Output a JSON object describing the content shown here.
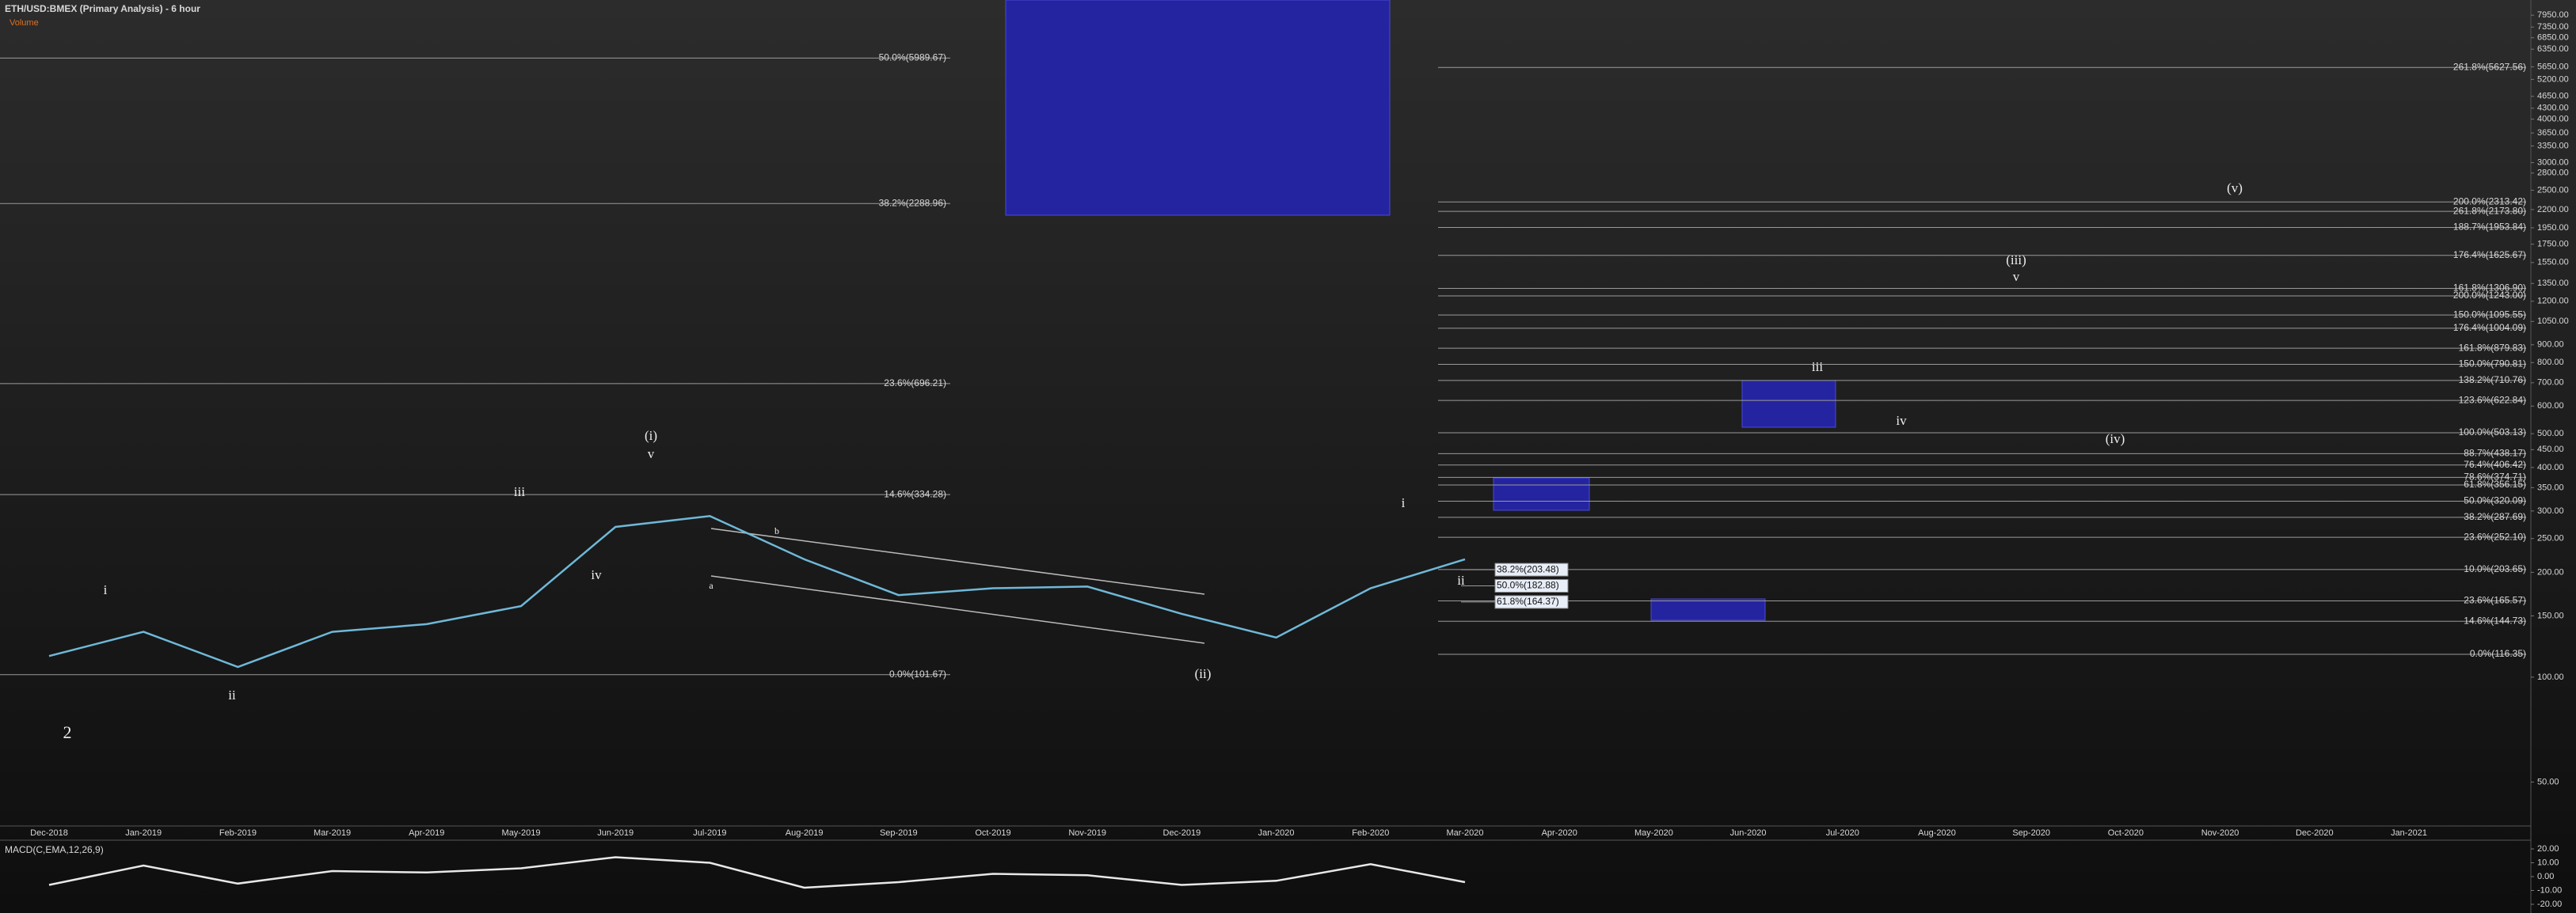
{
  "chart_data": [
    {
      "type": "line",
      "title": "ETH/USD:BMEX (Primary Analysis) - 6 hour",
      "subtitle": "Volume",
      "categories": [
        "Dec-2018",
        "Jan-2019",
        "Feb-2019",
        "Mar-2019",
        "Apr-2019",
        "May-2019",
        "Jun-2019",
        "Jul-2019",
        "Aug-2019",
        "Sep-2019",
        "Oct-2019",
        "Nov-2019",
        "Dec-2019",
        "Jan-2020",
        "Feb-2020",
        "Mar-2020",
        "Apr-2020",
        "May-2020",
        "Jun-2020",
        "Jul-2020",
        "Aug-2020",
        "Sep-2020",
        "Oct-2020",
        "Nov-2020",
        "Dec-2020",
        "Jan-2021"
      ],
      "series": [
        {
          "name": "ETH/USD",
          "color": "#6fb8d8",
          "values": [
            115,
            135,
            107,
            135,
            142,
            160,
            270,
            290,
            218,
            172,
            180,
            182,
            152,
            130,
            180,
            218,
            null,
            null,
            null,
            null,
            null,
            null,
            null,
            null,
            null,
            null
          ]
        }
      ],
      "log_scale": true,
      "grid": false,
      "ylim": [
        37.4,
        8790
      ],
      "yticks": [
        {
          "value": 7950,
          "label": "7950.00"
        },
        {
          "value": 7350,
          "label": "7350.00"
        },
        {
          "value": 6850,
          "label": "6850.00"
        },
        {
          "value": 6350,
          "label": "6350.00"
        },
        {
          "value": 5650,
          "label": "5650.00"
        },
        {
          "value": 5200,
          "label": "5200.00"
        },
        {
          "value": 4650,
          "label": "4650.00"
        },
        {
          "value": 4300,
          "label": "4300.00"
        },
        {
          "value": 4000,
          "label": "4000.00"
        },
        {
          "value": 3650,
          "label": "3650.00"
        },
        {
          "value": 3350,
          "label": "3350.00"
        },
        {
          "value": 3000,
          "label": "3000.00"
        },
        {
          "value": 2800,
          "label": "2800.00"
        },
        {
          "value": 2500,
          "label": "2500.00"
        },
        {
          "value": 2200,
          "label": "2200.00"
        },
        {
          "value": 1950,
          "label": "1950.00"
        },
        {
          "value": 1750,
          "label": "1750.00"
        },
        {
          "value": 1550,
          "label": "1550.00"
        },
        {
          "value": 1350,
          "label": "1350.00"
        },
        {
          "value": 1200,
          "label": "1200.00"
        },
        {
          "value": 1050,
          "label": "1050.00"
        },
        {
          "value": 900,
          "label": "900.00"
        },
        {
          "value": 800,
          "label": "800.00"
        },
        {
          "value": 700,
          "label": "700.00"
        },
        {
          "value": 600,
          "label": "600.00"
        },
        {
          "value": 500,
          "label": "500.00"
        },
        {
          "value": 450,
          "label": "450.00"
        },
        {
          "value": 400,
          "label": "400.00"
        },
        {
          "value": 350,
          "label": "350.00"
        },
        {
          "value": 300,
          "label": "300.00"
        },
        {
          "value": 250,
          "label": "250.00"
        },
        {
          "value": 200,
          "label": "200.00"
        },
        {
          "value": 150,
          "label": "150.00"
        },
        {
          "value": 100,
          "label": "100.00"
        },
        {
          "value": 50,
          "label": "50.00"
        }
      ],
      "fib_left": [
        {
          "text": "50.0%(5989.67)",
          "level": 5989.67
        },
        {
          "text": "38.2%(2288.96)",
          "level": 2288.96
        },
        {
          "text": "23.6%(696.21)",
          "level": 696.21
        },
        {
          "text": "14.6%(334.28)",
          "level": 334.28
        },
        {
          "text": "0.0%(101.67)",
          "level": 101.67
        }
      ],
      "fib_mid": [
        {
          "text": "38.2%(203.48)",
          "level": 203.48
        },
        {
          "text": "50.0%(182.88)",
          "level": 182.88
        },
        {
          "text": "61.8%(164.37)",
          "level": 164.37
        }
      ],
      "fib_right": [
        {
          "text": "261.8%(5627.56)",
          "level": 5627.56
        },
        {
          "text": "200.0%(2313.42)",
          "level": 2313.42
        },
        {
          "text": "261.8%(2173.80)",
          "level": 2173.8
        },
        {
          "text": "188.7%(1953.84)",
          "level": 1953.84
        },
        {
          "text": "176.4%(1625.67)",
          "level": 1625.67
        },
        {
          "text": "161.8%(1306.90)",
          "level": 1306.9
        },
        {
          "text": "200.0%(1243.00)",
          "level": 1243.0
        },
        {
          "text": "150.0%(1095.55)",
          "level": 1095.55
        },
        {
          "text": "176.4%(1004.09)",
          "level": 1004.09
        },
        {
          "text": "161.8%(879.83)",
          "level": 879.83
        },
        {
          "text": "150.0%(790.81)",
          "level": 790.81
        },
        {
          "text": "138.2%(710.76)",
          "level": 710.76
        },
        {
          "text": "123.6%(622.84)",
          "level": 622.84
        },
        {
          "text": "100.0%(503.13)",
          "level": 503.13
        },
        {
          "text": "88.7%(438.17)",
          "level": 438.17
        },
        {
          "text": "76.4%(406.42)",
          "level": 406.42
        },
        {
          "text": "78.6%(374.71)",
          "level": 374.71
        },
        {
          "text": "61.8%(356.15)",
          "level": 356.15
        },
        {
          "text": "50.0%(320.09)",
          "level": 320.09
        },
        {
          "text": "38.2%(287.69)",
          "level": 287.69
        },
        {
          "text": "23.6%(252.10)",
          "level": 252.1
        },
        {
          "text": "10.0%(203.65)",
          "level": 203.65
        },
        {
          "text": "23.6%(165.57)",
          "level": 165.57
        },
        {
          "text": "14.6%(144.73)",
          "level": 144.73
        },
        {
          "text": "0.0%(116.35)",
          "level": 116.35
        }
      ],
      "annotations": [
        "(i)",
        "v",
        "iii",
        "i",
        "2",
        "ii",
        "iv",
        "(ii)",
        "i",
        "ii",
        "iii",
        "iv",
        "(iii)",
        "v",
        "(iv)",
        "(v)",
        "b",
        "a"
      ]
    },
    {
      "type": "line",
      "title": "MACD(C,EMA,12,26,9)",
      "series": [
        {
          "name": "MACD",
          "color": "#e8e8e8",
          "values": [
            -6,
            8,
            -5,
            4,
            3,
            6,
            14,
            10,
            -8,
            -4,
            2,
            1,
            -6,
            -3,
            9,
            -4,
            null,
            null,
            null,
            null,
            null,
            null,
            null,
            null,
            null,
            null
          ]
        }
      ],
      "ylim": [
        -24,
        24
      ],
      "yticks": [
        {
          "value": 20,
          "label": "20.00"
        },
        {
          "value": 10,
          "label": "10.00"
        },
        {
          "value": 0,
          "label": "0.00"
        },
        {
          "value": -10,
          "label": "-10.00"
        },
        {
          "value": -20,
          "label": "-20.00"
        }
      ]
    }
  ]
}
